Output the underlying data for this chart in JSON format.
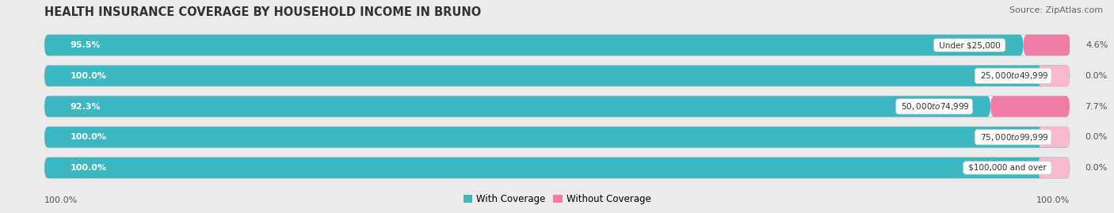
{
  "title": "HEALTH INSURANCE COVERAGE BY HOUSEHOLD INCOME IN BRUNO",
  "source": "Source: ZipAtlas.com",
  "categories": [
    "Under $25,000",
    "$25,000 to $49,999",
    "$50,000 to $74,999",
    "$75,000 to $99,999",
    "$100,000 and over"
  ],
  "with_coverage": [
    95.5,
    100.0,
    92.3,
    100.0,
    100.0
  ],
  "without_coverage": [
    4.6,
    0.0,
    7.7,
    0.0,
    0.0
  ],
  "color_with": "#3db8c0",
  "color_with_light": "#7dd4d8",
  "color_without": "#f07ca8",
  "color_without_light": "#f7b8d0",
  "bg_color": "#ebebeb",
  "bar_bg": "#ffffff",
  "legend_label_with": "With Coverage",
  "legend_label_without": "Without Coverage",
  "figsize": [
    14.06,
    2.69
  ],
  "dpi": 100,
  "xlim_total": 100,
  "bottom_left_label": "100.0%",
  "bottom_right_label": "100.0%"
}
